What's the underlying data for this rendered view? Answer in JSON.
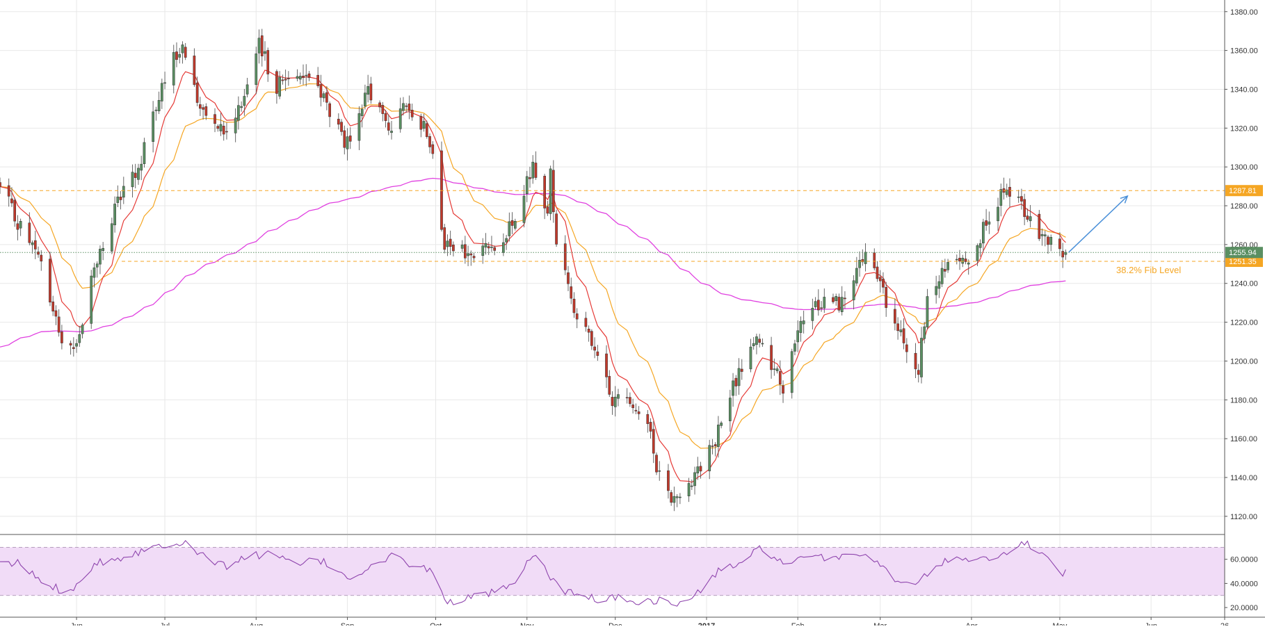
{
  "chart_data": {
    "type": "candlestick",
    "title": "",
    "colors": {
      "up_candle": "#5a8f62",
      "down_candle": "#c0392b",
      "ema_fast": "#e53935",
      "ema_slow": "#f5a623",
      "sma_long": "#e040e0",
      "fib_line": "#f5a623",
      "rsi_line": "#8e44ad",
      "rsi_band": "#f1dcf7",
      "projection_arrow": "#4a90d9",
      "price_badge": "#5a8f62"
    },
    "price_axis": {
      "range": [
        1111,
        1386
      ],
      "ticks": [
        "1380.00",
        "1360.00",
        "1340.00",
        "1320.00",
        "1300.00",
        "1280.00",
        "1260.00",
        "1240.00",
        "1220.00",
        "1200.00",
        "1180.00",
        "1160.00",
        "1140.00",
        "1120.00"
      ],
      "tick_values": [
        1380,
        1360,
        1340,
        1320,
        1300,
        1280,
        1260,
        1240,
        1220,
        1200,
        1180,
        1160,
        1140,
        1120
      ]
    },
    "time_axis": {
      "range": [
        "2016-05-06",
        "2017-06-26"
      ],
      "labels": [
        {
          "label": "Jun",
          "date": "2016-06-01",
          "bold": false
        },
        {
          "label": "Jul",
          "date": "2016-07-01",
          "bold": false
        },
        {
          "label": "Aug",
          "date": "2016-08-01",
          "bold": false
        },
        {
          "label": "Sep",
          "date": "2016-09-01",
          "bold": false
        },
        {
          "label": "Oct",
          "date": "2016-10-01",
          "bold": false
        },
        {
          "label": "Nov",
          "date": "2016-11-01",
          "bold": false
        },
        {
          "label": "Dec",
          "date": "2016-12-01",
          "bold": false
        },
        {
          "label": "2017",
          "date": "2017-01-01",
          "bold": true
        },
        {
          "label": "Feb",
          "date": "2017-02-01",
          "bold": false
        },
        {
          "label": "Mar",
          "date": "2017-03-01",
          "bold": false
        },
        {
          "label": "Apr",
          "date": "2017-04-01",
          "bold": false
        },
        {
          "label": "May",
          "date": "2017-05-01",
          "bold": false
        },
        {
          "label": "Jun",
          "date": "2017-06-01",
          "bold": false
        },
        {
          "label": "26",
          "date": "2017-06-26",
          "bold": false
        }
      ]
    },
    "price_path": {
      "description_dates": [
        "2016-05-06",
        "2016-05-12",
        "2016-05-20",
        "2016-05-26",
        "2016-06-01",
        "2016-06-07",
        "2016-06-13",
        "2016-06-17",
        "2016-06-22",
        "2016-06-24",
        "2016-06-30",
        "2016-07-06",
        "2016-07-08",
        "2016-07-12",
        "2016-07-18",
        "2016-07-22",
        "2016-07-29",
        "2016-08-02",
        "2016-08-08",
        "2016-08-15",
        "2016-08-22",
        "2016-08-29",
        "2016-09-02",
        "2016-09-08",
        "2016-09-15",
        "2016-09-22",
        "2016-09-28",
        "2016-09-30",
        "2016-10-04",
        "2016-10-07",
        "2016-10-13",
        "2016-10-20",
        "2016-10-28",
        "2016-11-03",
        "2016-11-08",
        "2016-11-09",
        "2016-11-11",
        "2016-11-17",
        "2016-11-24",
        "2016-11-30",
        "2016-12-07",
        "2016-12-12",
        "2016-12-15",
        "2016-12-21",
        "2016-12-27",
        "2017-01-03",
        "2017-01-10",
        "2017-01-17",
        "2017-01-24",
        "2017-01-27",
        "2017-02-03",
        "2017-02-10",
        "2017-02-17",
        "2017-02-24",
        "2017-02-28",
        "2017-03-03",
        "2017-03-09",
        "2017-03-14",
        "2017-03-17",
        "2017-03-24",
        "2017-03-31",
        "2017-04-07",
        "2017-04-11",
        "2017-04-17",
        "2017-04-21",
        "2017-04-26",
        "2017-04-28",
        "2017-05-03"
      ],
      "close_values": [
        1289,
        1272,
        1250,
        1214,
        1208,
        1248,
        1272,
        1290,
        1296,
        1315,
        1340,
        1362,
        1358,
        1334,
        1326,
        1318,
        1342,
        1362,
        1342,
        1350,
        1342,
        1318,
        1309,
        1340,
        1320,
        1332,
        1318,
        1311,
        1258,
        1258,
        1253,
        1260,
        1270,
        1302,
        1274,
        1298,
        1262,
        1228,
        1204,
        1180,
        1180,
        1166,
        1147,
        1128,
        1140,
        1155,
        1186,
        1212,
        1197,
        1186,
        1222,
        1232,
        1230,
        1255,
        1243,
        1230,
        1208,
        1196,
        1230,
        1250,
        1255,
        1272,
        1286,
        1283,
        1270,
        1265,
        1260,
        1256
      ]
    },
    "levels": [
      {
        "name": "resistance",
        "value": 1287.81,
        "label": "1287.81",
        "style": "dashed"
      },
      {
        "name": "fib",
        "value": 1251.35,
        "label": "1251.35",
        "style": "dashed",
        "annotation": "38.2% Fib Level"
      },
      {
        "name": "last_price",
        "value": 1255.94,
        "label": "1255.94",
        "style": "dotted"
      }
    ],
    "projection": {
      "from_date": "2017-05-04",
      "from_value": 1256,
      "to_date": "2017-05-24",
      "to_value": 1285
    },
    "rsi": {
      "range": [
        12,
        80
      ],
      "ticks": [
        "60.0000",
        "40.0000",
        "20.0000"
      ],
      "tick_values": [
        60,
        40,
        20
      ],
      "band": [
        30,
        70
      ],
      "dates": [
        "2016-05-06",
        "2016-05-12",
        "2016-05-20",
        "2016-05-26",
        "2016-06-01",
        "2016-06-07",
        "2016-06-17",
        "2016-06-24",
        "2016-06-30",
        "2016-07-08",
        "2016-07-15",
        "2016-07-22",
        "2016-07-29",
        "2016-08-05",
        "2016-08-15",
        "2016-08-22",
        "2016-09-02",
        "2016-09-08",
        "2016-09-16",
        "2016-09-23",
        "2016-09-30",
        "2016-10-04",
        "2016-10-10",
        "2016-10-20",
        "2016-10-28",
        "2016-11-03",
        "2016-11-09",
        "2016-11-15",
        "2016-11-25",
        "2016-12-02",
        "2016-12-09",
        "2016-12-16",
        "2016-12-21",
        "2016-12-27",
        "2017-01-05",
        "2017-01-13",
        "2017-01-20",
        "2017-01-27",
        "2017-02-03",
        "2017-02-13",
        "2017-02-24",
        "2017-03-03",
        "2017-03-10",
        "2017-03-16",
        "2017-03-24",
        "2017-04-03",
        "2017-04-12",
        "2017-04-18",
        "2017-04-26",
        "2017-05-01",
        "2017-05-04"
      ],
      "values": [
        55,
        57,
        42,
        35,
        38,
        57,
        62,
        68,
        72,
        75,
        60,
        55,
        62,
        65,
        55,
        60,
        45,
        52,
        62,
        56,
        50,
        25,
        26,
        32,
        38,
        65,
        45,
        32,
        27,
        28,
        25,
        26,
        22,
        27,
        50,
        58,
        70,
        55,
        60,
        62,
        65,
        50,
        38,
        45,
        60,
        62,
        63,
        75,
        65,
        50,
        48
      ]
    }
  }
}
